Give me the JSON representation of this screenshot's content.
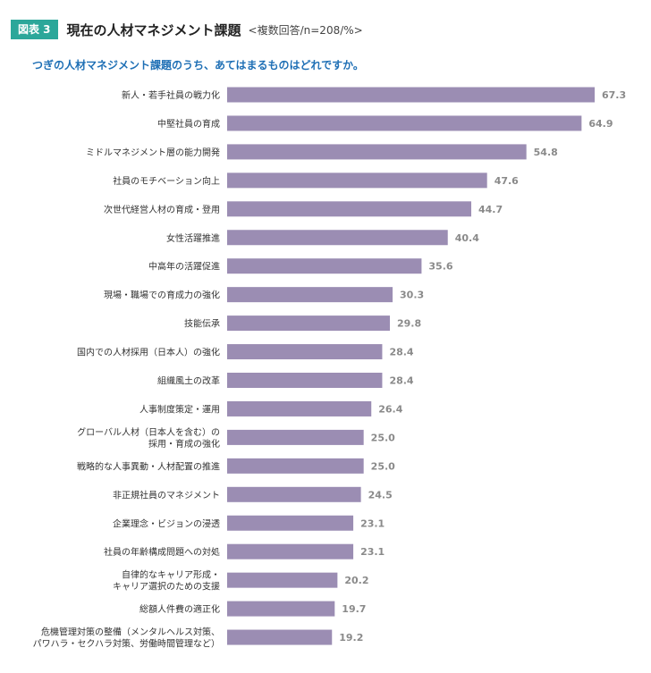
{
  "figure": {
    "badge": "図表 3",
    "title": "現在の人材マネジメント課題",
    "note": "<複数回答/n=208/%>"
  },
  "question": "つぎの人材マネジメント課題のうち、あてはまるものはどれですか。",
  "chart_data": {
    "type": "bar",
    "orientation": "horizontal",
    "bar_color": "#9b8db3",
    "xlim": [
      0,
      70
    ],
    "categories": [
      [
        "新人・若手社員の戦力化"
      ],
      [
        "中堅社員の育成"
      ],
      [
        "ミドルマネジメント層の能力開発"
      ],
      [
        "社員のモチベーション向上"
      ],
      [
        "次世代経営人材の育成・登用"
      ],
      [
        "女性活躍推進"
      ],
      [
        "中高年の活躍促進"
      ],
      [
        "現場・職場での育成力の強化"
      ],
      [
        "技能伝承"
      ],
      [
        "国内での人材採用（日本人）の強化"
      ],
      [
        "組織風土の改革"
      ],
      [
        "人事制度策定・運用"
      ],
      [
        "グローバル人材（日本人を含む）の",
        "採用・育成の強化"
      ],
      [
        "戦略的な人事異動・人材配置の推進"
      ],
      [
        "非正規社員のマネジメント"
      ],
      [
        "企業理念・ビジョンの浸透"
      ],
      [
        "社員の年齢構成問題への対処"
      ],
      [
        "自律的なキャリア形成・",
        "キャリア選択のための支援"
      ],
      [
        "総額人件費の適正化"
      ],
      [
        "危機管理対策の整備（メンタルヘルス対策、",
        "パワハラ・セクハラ対策、労働時間管理など）"
      ]
    ],
    "values": [
      67.3,
      64.9,
      54.8,
      47.6,
      44.7,
      40.4,
      35.6,
      30.3,
      29.8,
      28.4,
      28.4,
      26.4,
      25.0,
      25.0,
      24.5,
      23.1,
      23.1,
      20.2,
      19.7,
      19.2
    ],
    "value_labels": [
      "67.3",
      "64.9",
      "54.8",
      "47.6",
      "44.7",
      "40.4",
      "35.6",
      "30.3",
      "29.8",
      "28.4",
      "28.4",
      "26.4",
      "25.0",
      "25.0",
      "24.5",
      "23.1",
      "23.1",
      "20.2",
      "19.7",
      "19.2"
    ]
  }
}
